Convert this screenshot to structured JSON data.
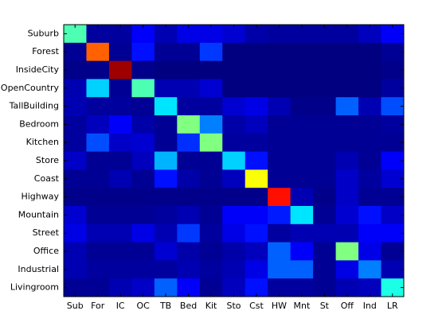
{
  "chart_data": {
    "type": "heatmap",
    "title": "",
    "xlabel": "",
    "ylabel": "",
    "colormap": "jet",
    "value_range": [
      0,
      1
    ],
    "grid": false,
    "row_labels": [
      "Suburb",
      "Forest",
      "InsideCity",
      "OpenCountry",
      "TallBuilding",
      "Bedroom",
      "Kitchen",
      "Store",
      "Coast",
      "Highway",
      "Mountain",
      "Street",
      "Office",
      "Industrial",
      "Livingroom"
    ],
    "col_labels": [
      "Sub",
      "For",
      "IC",
      "OC",
      "TB",
      "Bed",
      "Kit",
      "Sto",
      "Cst",
      "HW",
      "Mnt",
      "St",
      "Off",
      "Ind",
      "LR"
    ],
    "values": [
      [
        0.45,
        0.03,
        0.03,
        0.12,
        0.05,
        0.1,
        0.1,
        0.08,
        0.04,
        0.03,
        0.03,
        0.03,
        0.03,
        0.06,
        0.12
      ],
      [
        0.02,
        0.78,
        0.02,
        0.14,
        0.02,
        0.02,
        0.18,
        0.0,
        0.0,
        0.0,
        0.0,
        0.0,
        0.0,
        0.0,
        0.02
      ],
      [
        0.01,
        0.01,
        0.97,
        0.01,
        0.0,
        0.0,
        0.0,
        0.0,
        0.0,
        0.0,
        0.0,
        0.0,
        0.0,
        0.0,
        0.01
      ],
      [
        0.05,
        0.33,
        0.02,
        0.45,
        0.05,
        0.05,
        0.08,
        0.0,
        0.0,
        0.0,
        0.0,
        0.0,
        0.0,
        0.0,
        0.03
      ],
      [
        0.05,
        0.03,
        0.03,
        0.02,
        0.35,
        0.03,
        0.03,
        0.08,
        0.1,
        0.05,
        0.01,
        0.01,
        0.22,
        0.05,
        0.2
      ],
      [
        0.03,
        0.06,
        0.12,
        0.04,
        0.02,
        0.5,
        0.25,
        0.04,
        0.06,
        0.02,
        0.02,
        0.02,
        0.02,
        0.02,
        0.03
      ],
      [
        0.03,
        0.2,
        0.07,
        0.08,
        0.02,
        0.17,
        0.5,
        0.03,
        0.03,
        0.02,
        0.02,
        0.02,
        0.02,
        0.02,
        0.02
      ],
      [
        0.07,
        0.02,
        0.02,
        0.06,
        0.3,
        0.02,
        0.02,
        0.33,
        0.14,
        0.02,
        0.02,
        0.02,
        0.05,
        0.02,
        0.12
      ],
      [
        0.02,
        0.02,
        0.05,
        0.02,
        0.14,
        0.04,
        0.02,
        0.06,
        0.62,
        0.02,
        0.02,
        0.02,
        0.07,
        0.03,
        0.08
      ],
      [
        0.01,
        0.01,
        0.01,
        0.01,
        0.01,
        0.01,
        0.01,
        0.01,
        0.01,
        0.86,
        0.05,
        0.01,
        0.07,
        0.02,
        0.02
      ],
      [
        0.08,
        0.02,
        0.02,
        0.02,
        0.03,
        0.05,
        0.02,
        0.12,
        0.12,
        0.15,
        0.35,
        0.02,
        0.08,
        0.14,
        0.07
      ],
      [
        0.1,
        0.05,
        0.05,
        0.1,
        0.05,
        0.18,
        0.03,
        0.1,
        0.14,
        0.03,
        0.05,
        0.05,
        0.05,
        0.12,
        0.12
      ],
      [
        0.05,
        0.02,
        0.02,
        0.02,
        0.08,
        0.04,
        0.02,
        0.04,
        0.06,
        0.22,
        0.12,
        0.02,
        0.5,
        0.1,
        0.02
      ],
      [
        0.05,
        0.03,
        0.03,
        0.03,
        0.03,
        0.05,
        0.03,
        0.05,
        0.1,
        0.22,
        0.22,
        0.02,
        0.1,
        0.25,
        0.05
      ],
      [
        0.02,
        0.02,
        0.05,
        0.07,
        0.22,
        0.12,
        0.02,
        0.06,
        0.14,
        0.03,
        0.03,
        0.02,
        0.05,
        0.06,
        0.4
      ]
    ]
  }
}
